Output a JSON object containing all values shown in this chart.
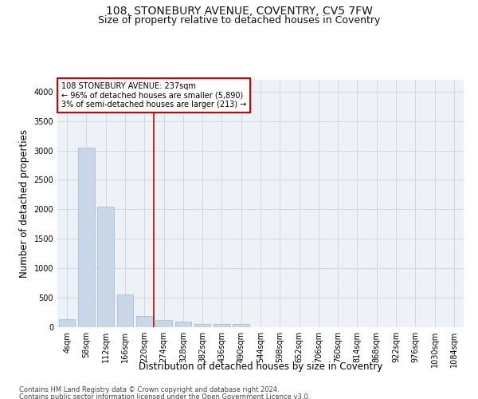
{
  "title": "108, STONEBURY AVENUE, COVENTRY, CV5 7FW",
  "subtitle": "Size of property relative to detached houses in Coventry",
  "xlabel": "Distribution of detached houses by size in Coventry",
  "ylabel": "Number of detached properties",
  "footnote1": "Contains HM Land Registry data © Crown copyright and database right 2024.",
  "footnote2": "Contains public sector information licensed under the Open Government Licence v3.0.",
  "bin_labels": [
    "4sqm",
    "58sqm",
    "112sqm",
    "166sqm",
    "220sqm",
    "274sqm",
    "328sqm",
    "382sqm",
    "436sqm",
    "490sqm",
    "544sqm",
    "598sqm",
    "652sqm",
    "706sqm",
    "760sqm",
    "814sqm",
    "868sqm",
    "922sqm",
    "976sqm",
    "1030sqm",
    "1084sqm"
  ],
  "bar_values": [
    130,
    3050,
    2050,
    550,
    190,
    120,
    100,
    50,
    50,
    50,
    0,
    0,
    0,
    0,
    0,
    0,
    0,
    0,
    0,
    0,
    0
  ],
  "bar_color": "#c8d8e8",
  "bar_edge_color": "#a0b8d0",
  "property_line_color": "#cc0000",
  "property_line_x": 4.5,
  "annotation_text": "108 STONEBURY AVENUE: 237sqm\n← 96% of detached houses are smaller (5,890)\n3% of semi-detached houses are larger (213) →",
  "annotation_box_color": "#cc0000",
  "ylim": [
    0,
    4200
  ],
  "yticks": [
    0,
    500,
    1000,
    1500,
    2000,
    2500,
    3000,
    3500,
    4000
  ],
  "grid_color": "#d0d8e0",
  "background_color": "#eef2f7",
  "title_fontsize": 10,
  "subtitle_fontsize": 9,
  "axis_label_fontsize": 8.5,
  "tick_fontsize": 7,
  "annotation_fontsize": 7
}
